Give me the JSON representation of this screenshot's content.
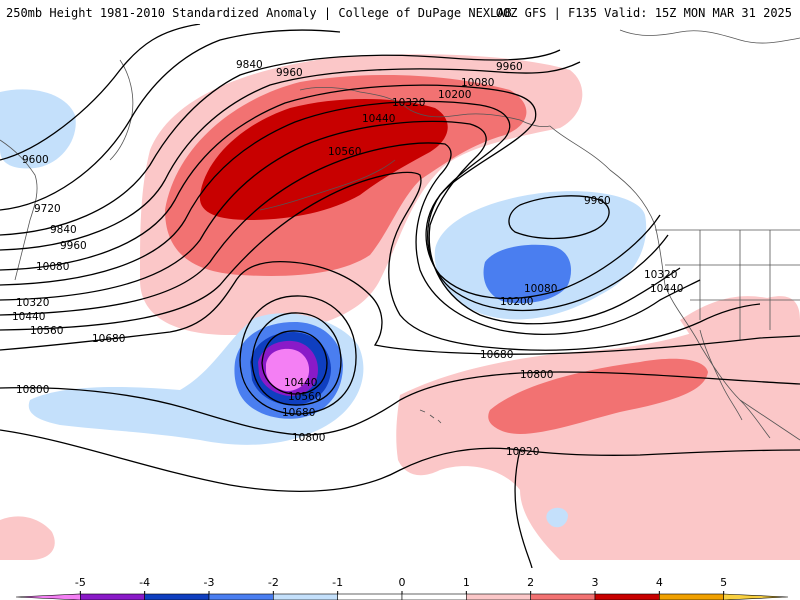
{
  "header": {
    "title": "250mb Height 1981-2010 Standardized Anomaly | College of DuPage NEXLAB",
    "run_info": "00Z GFS | F135 Valid: 15Z MON MAR 31 2025"
  },
  "contour_labels": {
    "l9840a": "9840",
    "l9960a": "9960",
    "l9960b": "9960",
    "l10080a": "10080",
    "l10200a": "10200",
    "l10320a": "10320",
    "l10440a": "10440",
    "l10560a": "10560",
    "l9600": "9600",
    "l9720": "9720",
    "l9840b": "9840",
    "l9960c": "9960",
    "l10080b": "10080",
    "l10320b": "10320",
    "l10440b": "10440",
    "l10560b": "10560",
    "l10680a": "10680",
    "l9960d": "9960",
    "l10080c": "10080",
    "l10200b": "10200",
    "l10320c": "10320",
    "l10440c": "10440",
    "l10440d": "10440",
    "l10560c": "10560",
    "l10680b": "10680",
    "l10680c": "10680",
    "l10800a": "10800",
    "l10800b": "10800",
    "l10800c": "10800",
    "l10920": "10920"
  },
  "legend": {
    "ticks": [
      "-5",
      "-4",
      "-3",
      "-2",
      "-1",
      "0",
      "1",
      "2",
      "3",
      "4",
      "5"
    ],
    "colors": [
      "#f47ff4",
      "#8a1ac8",
      "#0f3fc0",
      "#4a7ef0",
      "#c4e0fb",
      "#ffffff",
      "#ffffff",
      "#fbc7c8",
      "#f27272",
      "#c80000",
      "#f0a000",
      "#f8d040"
    ]
  }
}
